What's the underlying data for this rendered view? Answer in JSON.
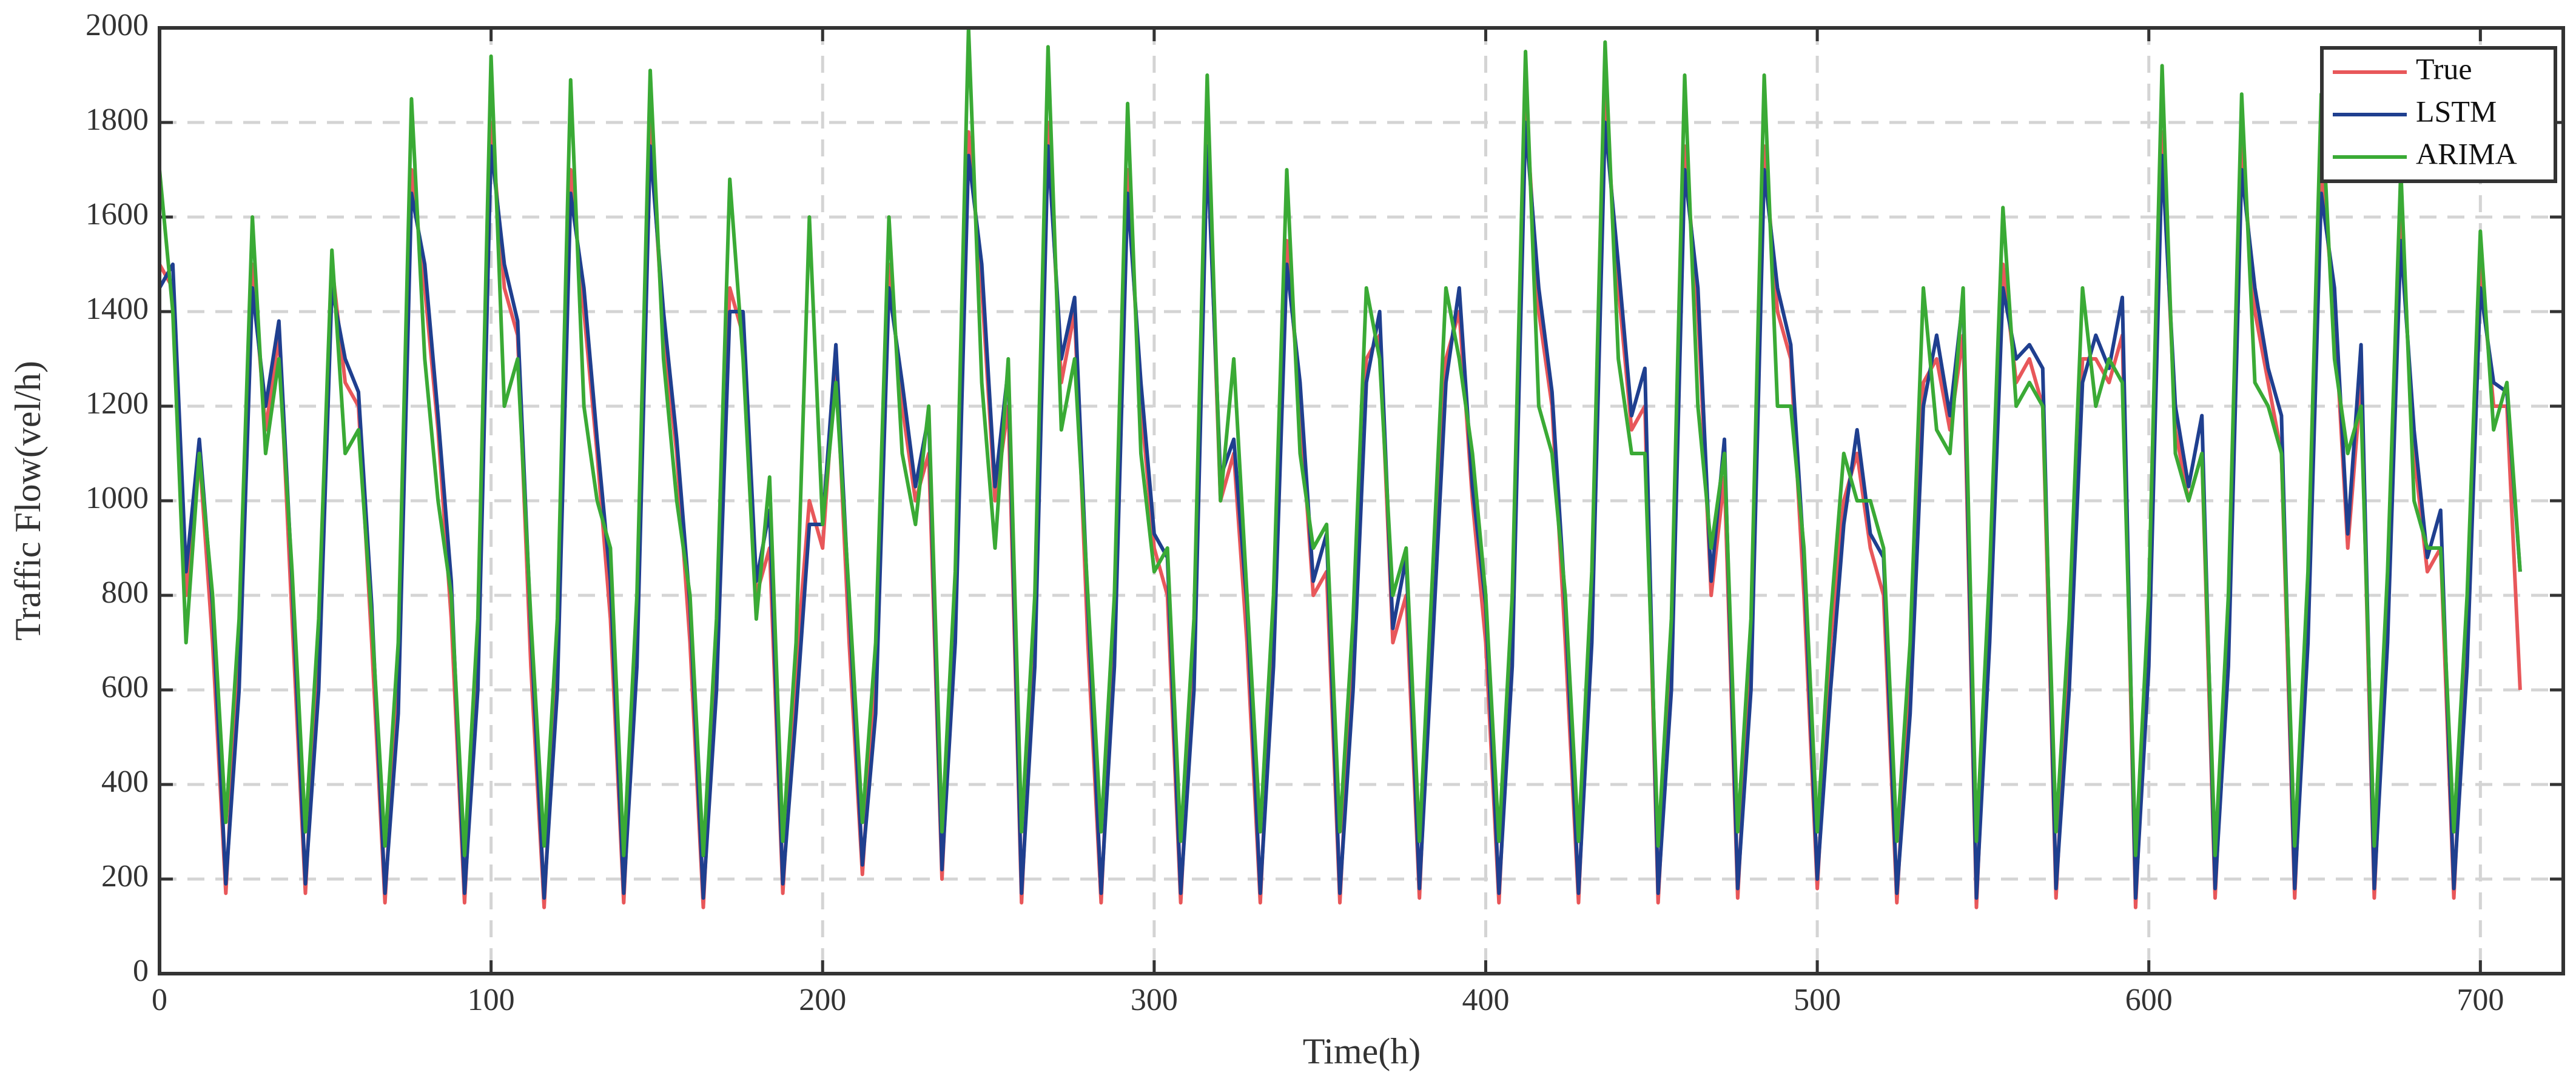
{
  "chart_data": {
    "type": "line",
    "x_label": "Time(h)",
    "y_label": "Traffic Flow(vel/h)",
    "xlim": [
      0,
      725
    ],
    "ylim": [
      0,
      2000
    ],
    "xticks": [
      0,
      100,
      200,
      300,
      400,
      500,
      600,
      700
    ],
    "yticks": [
      0,
      200,
      400,
      600,
      800,
      1000,
      1200,
      1400,
      1600,
      1800,
      2000
    ],
    "grid": true,
    "legend": "upper right",
    "x": [
      0,
      4,
      8,
      12,
      16,
      20,
      24,
      28,
      32,
      36,
      40,
      44,
      48,
      52,
      56,
      60,
      64,
      68,
      72,
      76,
      80,
      84,
      88,
      92,
      96,
      100,
      104,
      108,
      112,
      116,
      120,
      124,
      128,
      132,
      136,
      140,
      144,
      148,
      152,
      156,
      160,
      164,
      168,
      172,
      176,
      180,
      184,
      188,
      192,
      196,
      200,
      204,
      208,
      212,
      216,
      220,
      224,
      228,
      232,
      236,
      240,
      244,
      248,
      252,
      256,
      260,
      264,
      268,
      272,
      276,
      280,
      284,
      288,
      292,
      296,
      300,
      304,
      308,
      312,
      316,
      320,
      324,
      328,
      332,
      336,
      340,
      344,
      348,
      352,
      356,
      360,
      364,
      368,
      372,
      376,
      380,
      384,
      388,
      392,
      396,
      400,
      404,
      408,
      412,
      416,
      420,
      424,
      428,
      432,
      436,
      440,
      444,
      448,
      452,
      456,
      460,
      464,
      468,
      472,
      476,
      480,
      484,
      488,
      492,
      496,
      500,
      504,
      508,
      512,
      516,
      520,
      524,
      528,
      532,
      536,
      540,
      544,
      548,
      552,
      556,
      560,
      564,
      568,
      572,
      576,
      580,
      584,
      588,
      592,
      596,
      600,
      604,
      608,
      612,
      616,
      620,
      624,
      628,
      632,
      636,
      640,
      644,
      648,
      652,
      656,
      660,
      664,
      668,
      672,
      676,
      680,
      684,
      688,
      692,
      696,
      700,
      704,
      708,
      712
    ],
    "series": [
      {
        "name": "True",
        "color": "#e8575a",
        "values": [
          1500,
          1450,
          800,
          1100,
          700,
          170,
          700,
          1500,
          1150,
          1350,
          750,
          170,
          700,
          1500,
          1250,
          1200,
          700,
          150,
          650,
          1700,
          1450,
          1150,
          750,
          150,
          700,
          1800,
          1450,
          1350,
          650,
          140,
          700,
          1700,
          1400,
          1100,
          750,
          150,
          750,
          1800,
          1350,
          1100,
          700,
          140,
          700,
          1450,
          1350,
          800,
          900,
          170,
          650,
          1000,
          900,
          1300,
          700,
          210,
          650,
          1500,
          1200,
          1000,
          1100,
          200,
          800,
          1780,
          1450,
          1000,
          1200,
          150,
          750,
          1800,
          1250,
          1400,
          700,
          150,
          750,
          1700,
          1200,
          900,
          800,
          150,
          700,
          1800,
          1000,
          1100,
          700,
          150,
          750,
          1550,
          1200,
          800,
          850,
          150,
          700,
          1300,
          1350,
          700,
          800,
          160,
          800,
          1300,
          1400,
          1000,
          700,
          150,
          750,
          1850,
          1400,
          1200,
          700,
          150,
          800,
          1850,
          1450,
          1150,
          1200,
          150,
          700,
          1750,
          1400,
          800,
          1050,
          160,
          700,
          1750,
          1400,
          1300,
          800,
          180,
          700,
          1000,
          1100,
          900,
          800,
          150,
          650,
          1250,
          1300,
          1150,
          1350,
          140,
          800,
          1500,
          1250,
          1300,
          1200,
          160,
          700,
          1300,
          1300,
          1250,
          1350,
          140,
          750,
          1780,
          1150,
          1000,
          1100,
          160,
          750,
          1750,
          1400,
          1250,
          1100,
          160,
          800,
          1700,
          1400,
          900,
          1250,
          160,
          800,
          1600,
          1100,
          850,
          900,
          160,
          750,
          1500,
          1200,
          1200,
          600
        ]
      },
      {
        "name": "LSTM",
        "color": "#1f3f8f",
        "values": [
          1450,
          1500,
          850,
          1130,
          780,
          190,
          600,
          1450,
          1200,
          1380,
          830,
          190,
          600,
          1450,
          1300,
          1230,
          780,
          170,
          550,
          1650,
          1500,
          1180,
          830,
          170,
          600,
          1750,
          1500,
          1380,
          730,
          160,
          600,
          1650,
          1450,
          1130,
          830,
          170,
          650,
          1750,
          1400,
          1130,
          780,
          160,
          600,
          1400,
          1400,
          830,
          980,
          190,
          550,
          950,
          950,
          1330,
          780,
          230,
          550,
          1450,
          1250,
          1030,
          1180,
          220,
          700,
          1730,
          1500,
          1030,
          1280,
          170,
          650,
          1750,
          1300,
          1430,
          780,
          170,
          650,
          1650,
          1250,
          930,
          880,
          170,
          600,
          1750,
          1050,
          1130,
          780,
          170,
          650,
          1500,
          1250,
          830,
          930,
          170,
          600,
          1250,
          1400,
          730,
          880,
          180,
          700,
          1250,
          1450,
          1030,
          780,
          170,
          650,
          1800,
          1450,
          1230,
          780,
          170,
          700,
          1800,
          1500,
          1180,
          1280,
          170,
          600,
          1700,
          1450,
          830,
          1130,
          180,
          600,
          1700,
          1450,
          1330,
          880,
          200,
          600,
          950,
          1150,
          930,
          880,
          170,
          550,
          1200,
          1350,
          1180,
          1430,
          160,
          700,
          1450,
          1300,
          1330,
          1280,
          180,
          600,
          1250,
          1350,
          1280,
          1430,
          160,
          650,
          1730,
          1200,
          1030,
          1180,
          180,
          650,
          1700,
          1450,
          1280,
          1180,
          180,
          700,
          1650,
          1450,
          930,
          1330,
          180,
          700,
          1550,
          1150,
          880,
          980,
          180,
          650,
          1450,
          1250,
          1230,
          850
        ]
      },
      {
        "name": "ARIMA",
        "color": "#3aaa35",
        "values": [
          1700,
          1400,
          700,
          1100,
          800,
          320,
          750,
          1600,
          1100,
          1300,
          850,
          300,
          750,
          1530,
          1100,
          1150,
          750,
          270,
          700,
          1850,
          1300,
          1000,
          800,
          250,
          750,
          1940,
          1200,
          1300,
          750,
          270,
          750,
          1890,
          1200,
          1000,
          900,
          250,
          800,
          1910,
          1300,
          1000,
          800,
          250,
          750,
          1680,
          1300,
          750,
          1050,
          280,
          700,
          1600,
          950,
          1250,
          800,
          320,
          700,
          1600,
          1100,
          950,
          1200,
          300,
          850,
          2000,
          1250,
          900,
          1300,
          300,
          800,
          1960,
          1150,
          1300,
          800,
          300,
          800,
          1840,
          1100,
          850,
          900,
          280,
          750,
          1900,
          1000,
          1300,
          800,
          300,
          800,
          1700,
          1100,
          900,
          950,
          300,
          750,
          1450,
          1300,
          800,
          900,
          280,
          850,
          1450,
          1300,
          1100,
          800,
          280,
          800,
          1950,
          1200,
          1100,
          800,
          280,
          850,
          1970,
          1300,
          1100,
          1100,
          270,
          750,
          1900,
          1200,
          900,
          1100,
          300,
          750,
          1900,
          1200,
          1200,
          900,
          300,
          750,
          1100,
          1000,
          1000,
          900,
          280,
          700,
          1450,
          1150,
          1100,
          1450,
          280,
          850,
          1620,
          1200,
          1250,
          1200,
          300,
          750,
          1450,
          1200,
          1300,
          1250,
          250,
          800,
          1920,
          1100,
          1000,
          1100,
          250,
          800,
          1860,
          1250,
          1200,
          1100,
          270,
          850,
          1860,
          1300,
          1100,
          1200,
          270,
          850,
          1700,
          1000,
          900,
          900,
          300,
          800,
          1570,
          1150,
          1250,
          850
        ]
      }
    ]
  }
}
